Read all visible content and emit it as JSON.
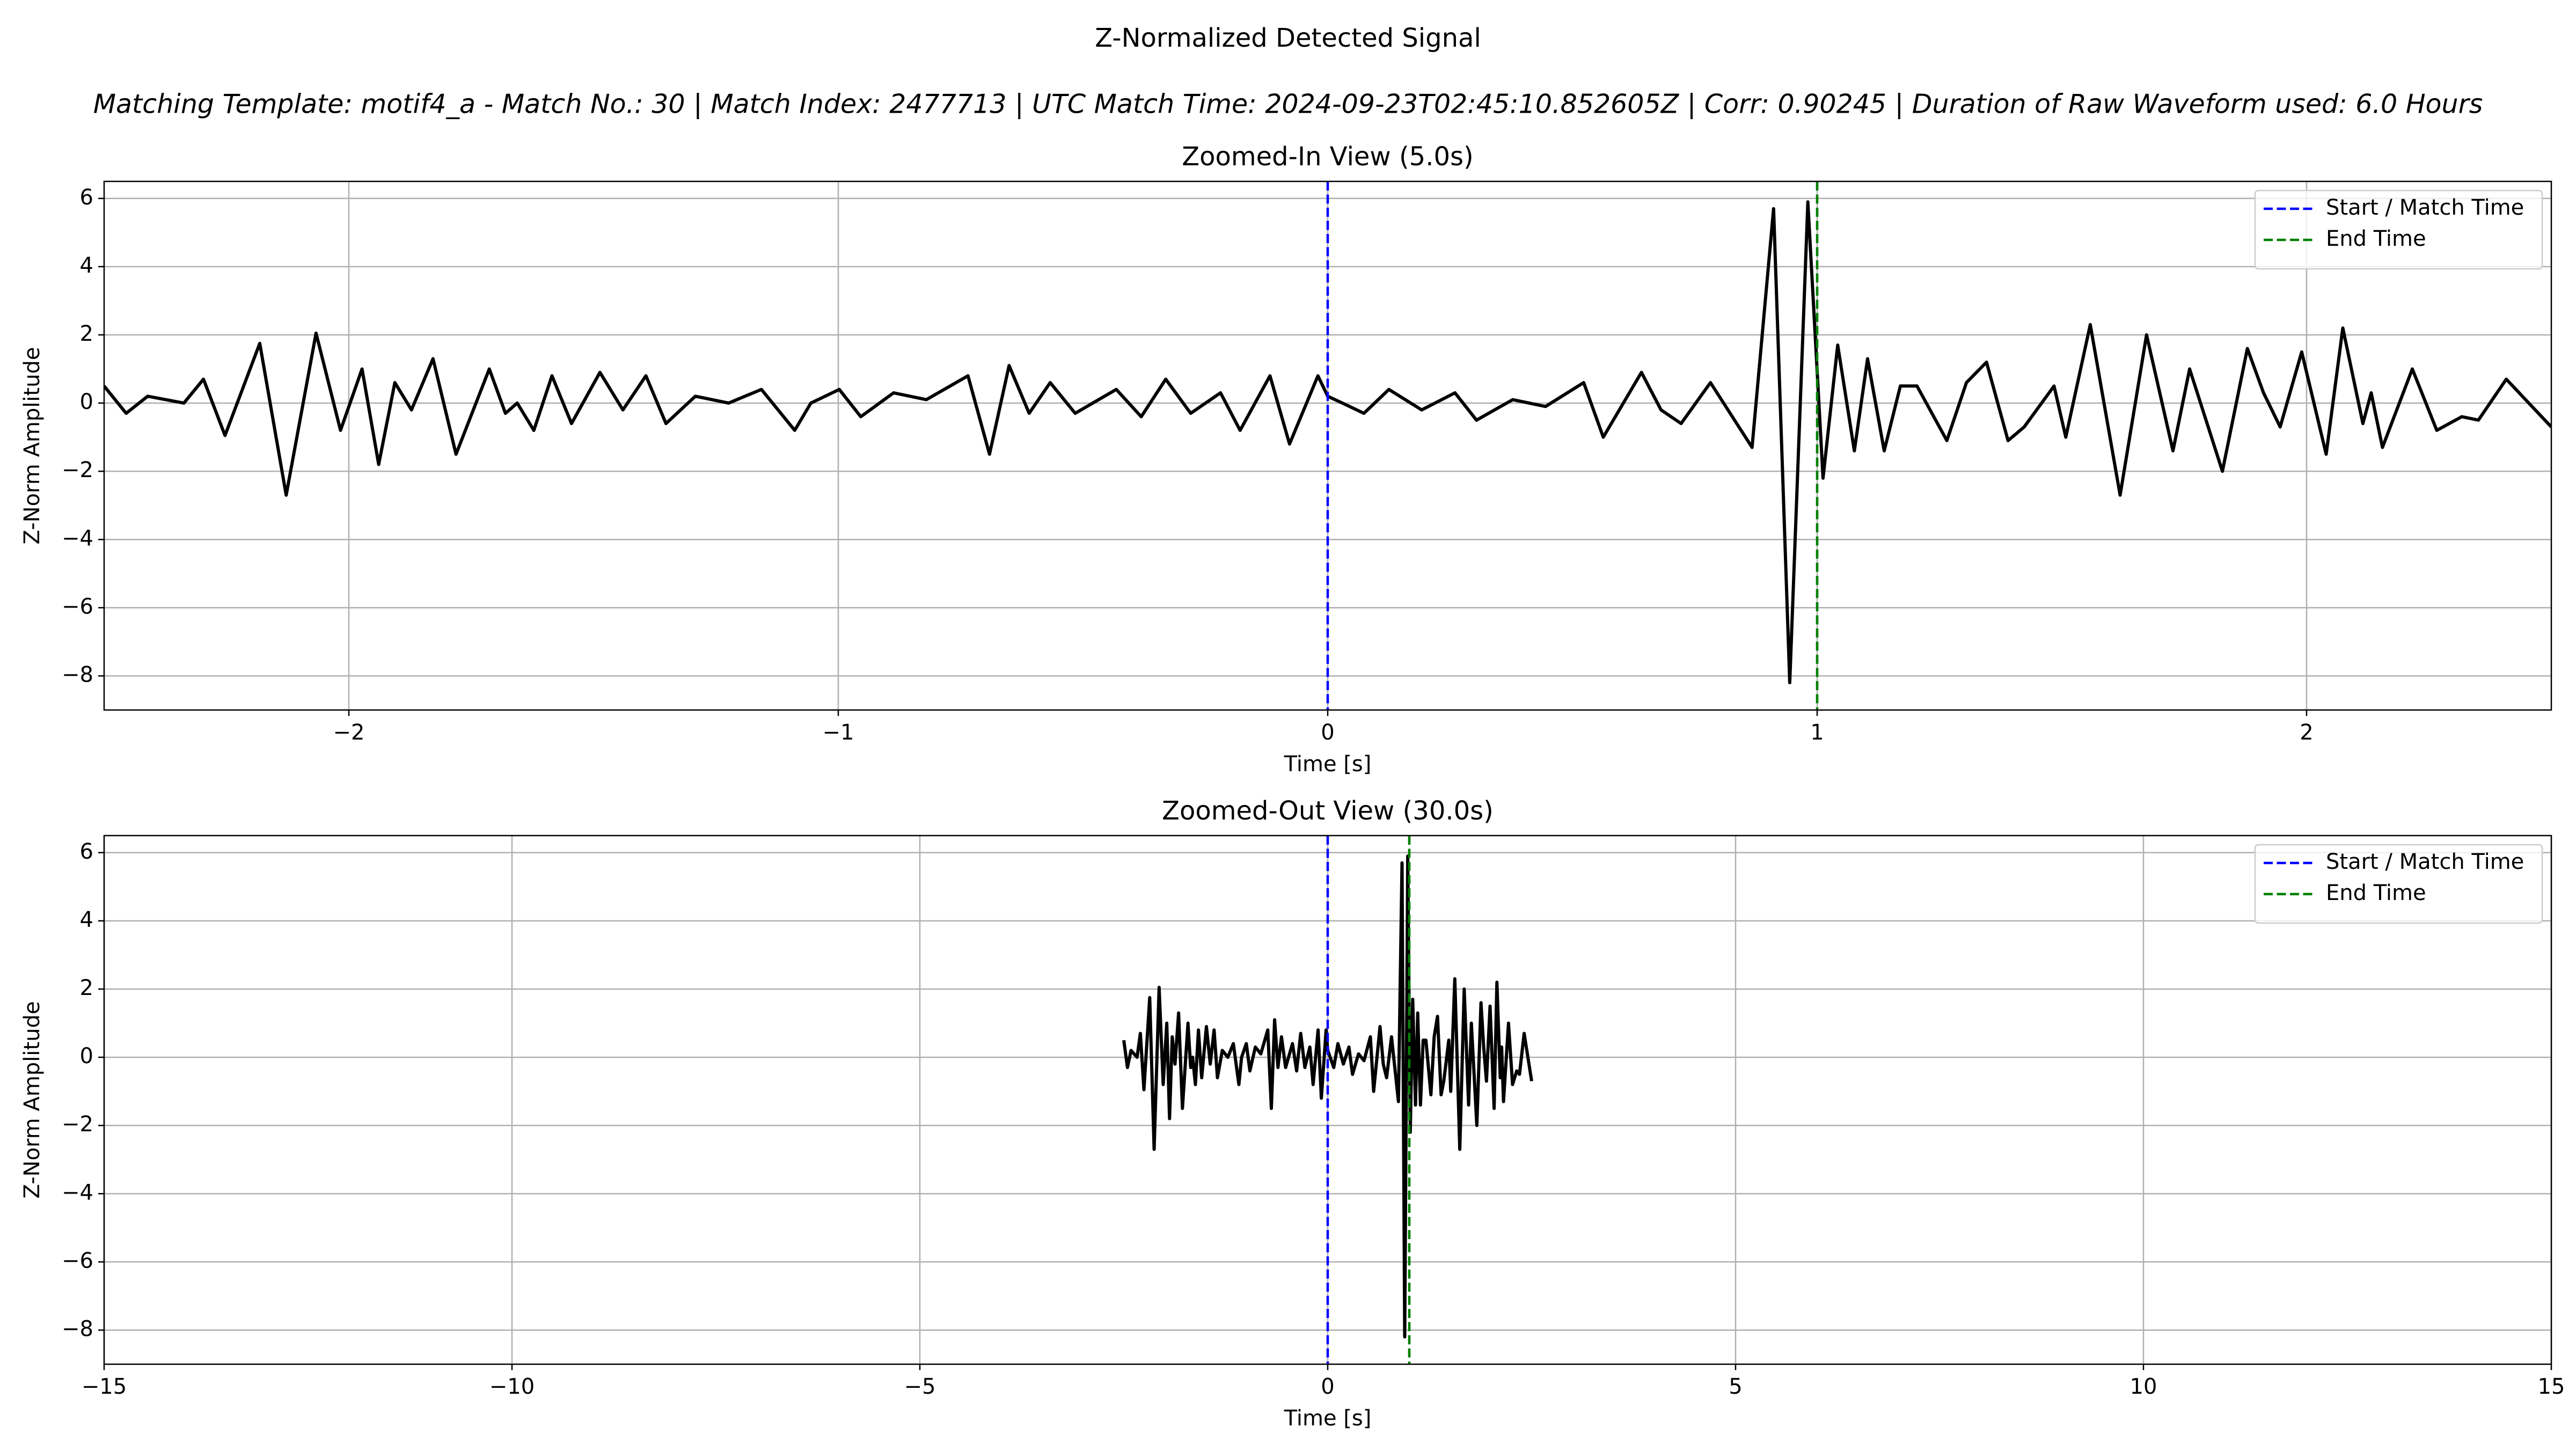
{
  "title": "Z-Normalized Detected Signal",
  "subtitle": "Matching Template: motif4_a - Match No.: 30 | Match Index: 2477713 | UTC Match Time: 2024-09-23T02:45:10.852605Z | Corr: 0.90245 | Duration of Raw Waveform used: 6.0 Hours",
  "chart_data": [
    {
      "type": "line",
      "title": "Zoomed-In View (5.0s)",
      "xlabel": "Time [s]",
      "ylabel": "Z-Norm Amplitude",
      "x": [
        -2.5,
        -2.455,
        -2.411,
        -2.337,
        -2.297,
        -2.253,
        -2.182,
        -2.128,
        -2.067,
        -2.017,
        -1.973,
        -1.939,
        -1.906,
        -1.872,
        -1.828,
        -1.781,
        -1.713,
        -1.68,
        -1.656,
        -1.622,
        -1.585,
        -1.545,
        -1.487,
        -1.44,
        -1.393,
        -1.352,
        -1.292,
        -1.224,
        -1.157,
        -1.089,
        -1.056,
        -0.998,
        -0.954,
        -0.887,
        -0.82,
        -0.735,
        -0.691,
        -0.651,
        -0.61,
        -0.567,
        -0.516,
        -0.432,
        -0.381,
        -0.331,
        -0.28,
        -0.219,
        -0.179,
        -0.118,
        -0.078,
        -0.02,
        0,
        0.03,
        0.074,
        0.125,
        0.192,
        0.26,
        0.304,
        0.378,
        0.445,
        0.523,
        0.563,
        0.641,
        0.681,
        0.722,
        0.782,
        0.867,
        0.911,
        0.944,
        0.981,
        1.012,
        1.042,
        1.076,
        1.103,
        1.137,
        1.17,
        1.204,
        1.265,
        1.305,
        1.346,
        1.39,
        1.423,
        1.484,
        1.508,
        1.558,
        1.619,
        1.673,
        1.727,
        1.761,
        1.828,
        1.879,
        1.912,
        1.946,
        1.99,
        2.04,
        2.074,
        2.115,
        2.132,
        2.155,
        2.216,
        2.266,
        2.317,
        2.351,
        2.408,
        2.5
      ],
      "series": [
        {
          "color": "#000000",
          "values": [
            0.5,
            -0.3,
            0.2,
            0.0,
            0.7,
            -0.95,
            1.75,
            -2.7,
            2.05,
            -0.8,
            1.0,
            -1.8,
            0.6,
            -0.2,
            1.3,
            -1.5,
            1.0,
            -0.3,
            0.0,
            -0.8,
            0.8,
            -0.6,
            0.9,
            -0.2,
            0.8,
            -0.6,
            0.2,
            0.0,
            0.4,
            -0.8,
            0.0,
            0.4,
            -0.4,
            0.3,
            0.1,
            0.8,
            -1.5,
            1.1,
            -0.3,
            0.6,
            -0.3,
            0.4,
            -0.4,
            0.7,
            -0.3,
            0.3,
            -0.8,
            0.8,
            -1.2,
            0.8,
            0.2,
            0.0,
            -0.3,
            0.4,
            -0.2,
            0.3,
            -0.5,
            0.1,
            -0.1,
            0.6,
            -1.0,
            0.9,
            -0.2,
            -0.6,
            0.6,
            -1.3,
            5.7,
            -8.2,
            5.9,
            -2.2,
            1.7,
            -1.4,
            1.3,
            -1.4,
            0.5,
            0.5,
            -1.1,
            0.6,
            1.2,
            -1.1,
            -0.7,
            0.5,
            -1.0,
            2.3,
            -2.7,
            2.0,
            -1.4,
            1.0,
            -2.0,
            1.6,
            0.3,
            -0.7,
            1.5,
            -1.5,
            2.2,
            -0.6,
            0.3,
            -1.3,
            1.0,
            -0.8,
            -0.4,
            -0.5,
            0.7,
            -0.7
          ]
        }
      ],
      "vlines": [
        {
          "name": "Start / Match Time",
          "color": "#0000ff",
          "x": 0
        },
        {
          "name": "End Time",
          "color": "#008000",
          "x": 1.0
        }
      ],
      "xlim": [
        -2.5,
        2.5
      ],
      "ylim": [
        -9,
        6.5
      ],
      "xticks": [
        {
          "value": -2,
          "label": "−2"
        },
        {
          "value": -1,
          "label": "−1"
        },
        0,
        1,
        2
      ],
      "yticks": [
        {
          "value": -8,
          "label": "−8"
        },
        {
          "value": -6,
          "label": "−6"
        },
        {
          "value": -4,
          "label": "−4"
        },
        {
          "value": -2,
          "label": "−2"
        },
        0,
        2,
        4,
        6
      ],
      "grid": true,
      "legend": "upper right"
    },
    {
      "type": "line",
      "title": "Zoomed-Out View (30.0s)",
      "xlabel": "Time [s]",
      "ylabel": "Z-Norm Amplitude",
      "x": [
        -2.5,
        -2.455,
        -2.411,
        -2.337,
        -2.297,
        -2.253,
        -2.182,
        -2.128,
        -2.067,
        -2.017,
        -1.973,
        -1.939,
        -1.906,
        -1.872,
        -1.828,
        -1.781,
        -1.713,
        -1.68,
        -1.656,
        -1.622,
        -1.585,
        -1.545,
        -1.487,
        -1.44,
        -1.393,
        -1.352,
        -1.292,
        -1.224,
        -1.157,
        -1.089,
        -1.056,
        -0.998,
        -0.954,
        -0.887,
        -0.82,
        -0.735,
        -0.691,
        -0.651,
        -0.61,
        -0.567,
        -0.516,
        -0.432,
        -0.381,
        -0.331,
        -0.28,
        -0.219,
        -0.179,
        -0.118,
        -0.078,
        -0.02,
        0,
        0.03,
        0.074,
        0.125,
        0.192,
        0.26,
        0.304,
        0.378,
        0.445,
        0.523,
        0.563,
        0.641,
        0.681,
        0.722,
        0.782,
        0.867,
        0.911,
        0.944,
        0.981,
        1.012,
        1.042,
        1.076,
        1.103,
        1.137,
        1.17,
        1.204,
        1.265,
        1.305,
        1.346,
        1.39,
        1.423,
        1.484,
        1.508,
        1.558,
        1.619,
        1.673,
        1.727,
        1.761,
        1.828,
        1.879,
        1.912,
        1.946,
        1.99,
        2.04,
        2.074,
        2.115,
        2.132,
        2.155,
        2.216,
        2.266,
        2.317,
        2.351,
        2.408,
        2.5
      ],
      "series": [
        {
          "color": "#000000",
          "values": [
            0.5,
            -0.3,
            0.2,
            0.0,
            0.7,
            -0.95,
            1.75,
            -2.7,
            2.05,
            -0.8,
            1.0,
            -1.8,
            0.6,
            -0.2,
            1.3,
            -1.5,
            1.0,
            -0.3,
            0.0,
            -0.8,
            0.8,
            -0.6,
            0.9,
            -0.2,
            0.8,
            -0.6,
            0.2,
            0.0,
            0.4,
            -0.8,
            0.0,
            0.4,
            -0.4,
            0.3,
            0.1,
            0.8,
            -1.5,
            1.1,
            -0.3,
            0.6,
            -0.3,
            0.4,
            -0.4,
            0.7,
            -0.3,
            0.3,
            -0.8,
            0.8,
            -1.2,
            0.8,
            0.2,
            0.0,
            -0.3,
            0.4,
            -0.2,
            0.3,
            -0.5,
            0.1,
            -0.1,
            0.6,
            -1.0,
            0.9,
            -0.2,
            -0.6,
            0.6,
            -1.3,
            5.7,
            -8.2,
            5.9,
            -2.2,
            1.7,
            -1.4,
            1.3,
            -1.4,
            0.5,
            0.5,
            -1.1,
            0.6,
            1.2,
            -1.1,
            -0.7,
            0.5,
            -1.0,
            2.3,
            -2.7,
            2.0,
            -1.4,
            1.0,
            -2.0,
            1.6,
            0.3,
            -0.7,
            1.5,
            -1.5,
            2.2,
            -0.6,
            0.3,
            -1.3,
            1.0,
            -0.8,
            -0.4,
            -0.5,
            0.7,
            -0.7
          ]
        }
      ],
      "vlines": [
        {
          "name": "Start / Match Time",
          "color": "#0000ff",
          "x": 0
        },
        {
          "name": "End Time",
          "color": "#008000",
          "x": 1.0
        }
      ],
      "xlim": [
        -15,
        15
      ],
      "ylim": [
        -9,
        6.5
      ],
      "xticks": [
        {
          "value": -15,
          "label": "−15"
        },
        {
          "value": -10,
          "label": "−10"
        },
        {
          "value": -5,
          "label": "−5"
        },
        0,
        5,
        10,
        15
      ],
      "yticks": [
        {
          "value": -8,
          "label": "−8"
        },
        {
          "value": -6,
          "label": "−6"
        },
        {
          "value": -4,
          "label": "−4"
        },
        {
          "value": -2,
          "label": "−2"
        },
        0,
        2,
        4,
        6
      ],
      "grid": true,
      "legend": "upper right"
    }
  ]
}
